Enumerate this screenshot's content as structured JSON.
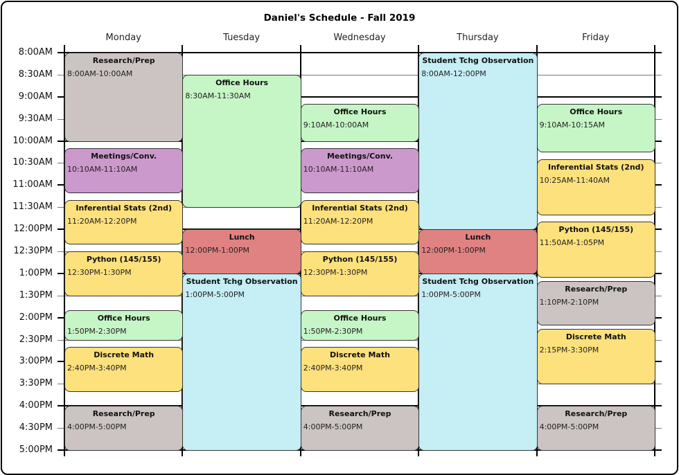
{
  "chart_data": {
    "type": "schedule",
    "title": "Daniel's Schedule - Fall 2019",
    "days": [
      "Monday",
      "Tuesday",
      "Wednesday",
      "Thursday",
      "Friday"
    ],
    "time_labels": [
      "8:00AM",
      "8:30AM",
      "9:00AM",
      "9:30AM",
      "10:00AM",
      "10:30AM",
      "11:00AM",
      "11:30AM",
      "12:00PM",
      "12:30PM",
      "1:00PM",
      "1:30PM",
      "2:00PM",
      "2:30PM",
      "3:00PM",
      "3:30PM",
      "4:00PM",
      "4:30PM",
      "5:00PM"
    ],
    "time_range": [
      "8:00AM",
      "5:00PM"
    ],
    "colors": {
      "research": "#cbc4c2",
      "meetings": "#cc99cc",
      "stats": "#fde17d",
      "python": "#fde17d",
      "math": "#fde17d",
      "office": "#c6f5c6",
      "lunch": "#e08282",
      "observation": "#c5eef5"
    },
    "events": [
      {
        "day": 0,
        "title": "Research/Prep",
        "range": "8:00AM-10:00AM",
        "start": "8:00",
        "end": "10:00",
        "kind": "research"
      },
      {
        "day": 0,
        "title": "Meetings/Conv.",
        "range": "10:10AM-11:10AM",
        "start": "10:10",
        "end": "11:10",
        "kind": "meetings"
      },
      {
        "day": 0,
        "title": "Inferential Stats (2nd)",
        "range": "11:20AM-12:20PM",
        "start": "11:20",
        "end": "12:20",
        "kind": "stats"
      },
      {
        "day": 0,
        "title": "Python (145/155)",
        "range": "12:30PM-1:30PM",
        "start": "12:30",
        "end": "13:30",
        "kind": "python"
      },
      {
        "day": 0,
        "title": "Office Hours",
        "range": "1:50PM-2:30PM",
        "start": "13:50",
        "end": "14:30",
        "kind": "office"
      },
      {
        "day": 0,
        "title": "Discrete Math",
        "range": "2:40PM-3:40PM",
        "start": "14:40",
        "end": "15:40",
        "kind": "math"
      },
      {
        "day": 0,
        "title": "Research/Prep",
        "range": "4:00PM-5:00PM",
        "start": "16:00",
        "end": "17:00",
        "kind": "research"
      },
      {
        "day": 1,
        "title": "Office Hours",
        "range": "8:30AM-11:30AM",
        "start": "8:30",
        "end": "11:30",
        "kind": "office"
      },
      {
        "day": 1,
        "title": "Lunch",
        "range": "12:00PM-1:00PM",
        "start": "12:00",
        "end": "13:00",
        "kind": "lunch"
      },
      {
        "day": 1,
        "title": "Student Tchg Observation",
        "range": "1:00PM-5:00PM",
        "start": "13:00",
        "end": "17:00",
        "kind": "observation"
      },
      {
        "day": 2,
        "title": "Office Hours",
        "range": "9:10AM-10:00AM",
        "start": "9:10",
        "end": "10:00",
        "kind": "office"
      },
      {
        "day": 2,
        "title": "Meetings/Conv.",
        "range": "10:10AM-11:10AM",
        "start": "10:10",
        "end": "11:10",
        "kind": "meetings"
      },
      {
        "day": 2,
        "title": "Inferential Stats (2nd)",
        "range": "11:20AM-12:20PM",
        "start": "11:20",
        "end": "12:20",
        "kind": "stats"
      },
      {
        "day": 2,
        "title": "Python (145/155)",
        "range": "12:30PM-1:30PM",
        "start": "12:30",
        "end": "13:30",
        "kind": "python"
      },
      {
        "day": 2,
        "title": "Office Hours",
        "range": "1:50PM-2:30PM",
        "start": "13:50",
        "end": "14:30",
        "kind": "office"
      },
      {
        "day": 2,
        "title": "Discrete Math",
        "range": "2:40PM-3:40PM",
        "start": "14:40",
        "end": "15:40",
        "kind": "math"
      },
      {
        "day": 2,
        "title": "Research/Prep",
        "range": "4:00PM-5:00PM",
        "start": "16:00",
        "end": "17:00",
        "kind": "research"
      },
      {
        "day": 3,
        "title": "Student Tchg Observation",
        "range": "8:00AM-12:00PM",
        "start": "8:00",
        "end": "12:00",
        "kind": "observation"
      },
      {
        "day": 3,
        "title": "Lunch",
        "range": "12:00PM-1:00PM",
        "start": "12:00",
        "end": "13:00",
        "kind": "lunch"
      },
      {
        "day": 3,
        "title": "Student Tchg Observation",
        "range": "1:00PM-5:00PM",
        "start": "13:00",
        "end": "17:00",
        "kind": "observation"
      },
      {
        "day": 4,
        "title": "Office Hours",
        "range": "9:10AM-10:15AM",
        "start": "9:10",
        "end": "10:15",
        "kind": "office"
      },
      {
        "day": 4,
        "title": "Inferential Stats (2nd)",
        "range": "10:25AM-11:40AM",
        "start": "10:25",
        "end": "11:40",
        "kind": "stats"
      },
      {
        "day": 4,
        "title": "Python (145/155)",
        "range": "11:50AM-1:05PM",
        "start": "11:50",
        "end": "13:05",
        "kind": "python"
      },
      {
        "day": 4,
        "title": "Research/Prep",
        "range": "1:10PM-2:10PM",
        "start": "13:10",
        "end": "14:10",
        "kind": "research"
      },
      {
        "day": 4,
        "title": "Discrete Math",
        "range": "2:15PM-3:30PM",
        "start": "14:15",
        "end": "15:30",
        "kind": "math"
      },
      {
        "day": 4,
        "title": "Research/Prep",
        "range": "4:00PM-5:00PM",
        "start": "16:00",
        "end": "17:00",
        "kind": "research"
      }
    ]
  }
}
